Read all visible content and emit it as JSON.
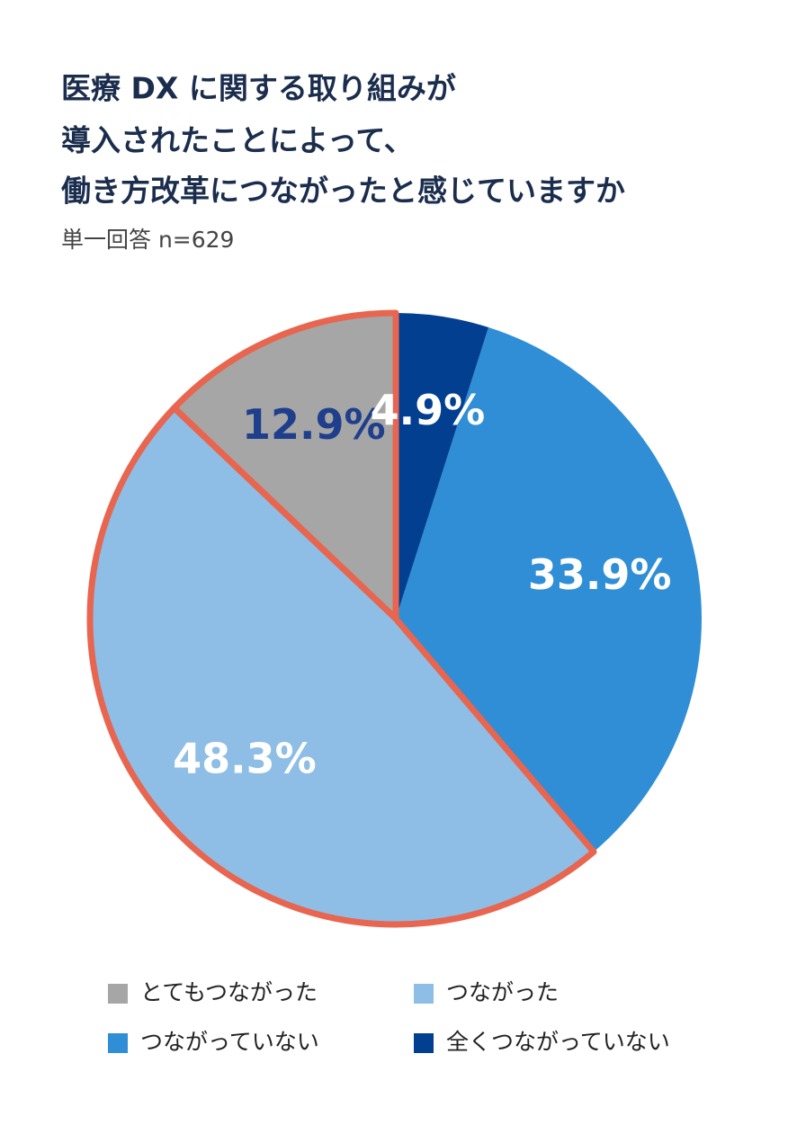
{
  "chart_data": {
    "type": "pie",
    "title": [
      "医療 DX に関する取り組みが",
      "導入されたことによって、",
      "働き方改革につながったと感じていますか"
    ],
    "subtitle": "単一回答 n=629",
    "categories": [
      "とてもつながった",
      "つながった",
      "つながっていない",
      "全くつながっていない"
    ],
    "values": [
      12.9,
      48.3,
      33.9,
      4.9
    ],
    "value_labels": [
      "12.9%",
      "48.3%",
      "33.9%",
      "4.9%"
    ],
    "colors": [
      "#a6a6a6",
      "#8ebee5",
      "#2f8ed5",
      "#023f91"
    ],
    "label_colors": [
      "#1f3f8c",
      "#ffffff",
      "#ffffff",
      "#ffffff"
    ],
    "direction": "counterclockwise",
    "highlight_indices": [
      0,
      1
    ],
    "highlight_color": "#e8654f"
  }
}
